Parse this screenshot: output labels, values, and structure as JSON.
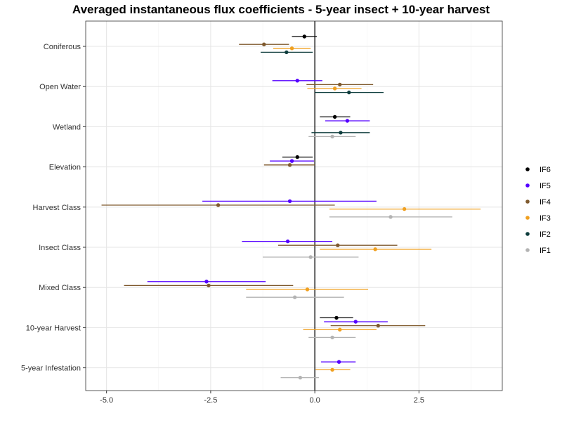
{
  "chart_data": {
    "type": "scatter",
    "title": "Averaged instantaneous flux coefficients - 5-year insect + 10-year harvest",
    "xlabel": "",
    "ylabel": "",
    "xlim": [
      -5.5,
      4.5
    ],
    "x_ticks": [
      -5.0,
      -2.5,
      0.0,
      2.5
    ],
    "x_tick_labels": [
      "-5.0",
      "-2.5",
      "0.0",
      "2.5"
    ],
    "grid": true,
    "reference_line_x": 0,
    "legend_position": "right",
    "categories": [
      "Coniferous",
      "Open Water",
      "Wetland",
      "Elevation",
      "Harvest Class",
      "Insect Class",
      "Mixed Class",
      "10-year Harvest",
      "5-year Infestation"
    ],
    "series": [
      {
        "name": "IF6",
        "color": "#000000",
        "points": [
          {
            "category": "Coniferous",
            "estimate": -0.25,
            "lower": -0.55,
            "upper": 0.05
          },
          {
            "category": "Wetland",
            "estimate": 0.48,
            "lower": 0.12,
            "upper": 0.85
          },
          {
            "category": "Elevation",
            "estimate": -0.42,
            "lower": -0.78,
            "upper": -0.05
          },
          {
            "category": "10-year Harvest",
            "estimate": 0.52,
            "lower": 0.12,
            "upper": 0.92
          }
        ]
      },
      {
        "name": "IF5",
        "color": "#5500FF",
        "points": [
          {
            "category": "Open Water",
            "estimate": -0.42,
            "lower": -1.02,
            "upper": 0.18
          },
          {
            "category": "Wetland",
            "estimate": 0.78,
            "lower": 0.25,
            "upper": 1.32
          },
          {
            "category": "Elevation",
            "estimate": -0.55,
            "lower": -1.08,
            "upper": -0.02
          },
          {
            "category": "Harvest Class",
            "estimate": -0.6,
            "lower": -2.7,
            "upper": 1.48
          },
          {
            "category": "Insect Class",
            "estimate": -0.65,
            "lower": -1.75,
            "upper": 0.42
          },
          {
            "category": "Mixed Class",
            "estimate": -2.6,
            "lower": -4.02,
            "upper": -1.18
          },
          {
            "category": "10-year Harvest",
            "estimate": 0.98,
            "lower": 0.22,
            "upper": 1.75
          },
          {
            "category": "5-year Infestation",
            "estimate": 0.58,
            "lower": 0.15,
            "upper": 0.98
          }
        ]
      },
      {
        "name": "IF4",
        "color": "#7F5A2E",
        "points": [
          {
            "category": "Coniferous",
            "estimate": -1.22,
            "lower": -1.82,
            "upper": -0.62
          },
          {
            "category": "Open Water",
            "estimate": 0.6,
            "lower": -0.2,
            "upper": 1.4
          },
          {
            "category": "Elevation",
            "estimate": -0.6,
            "lower": -1.22,
            "upper": 0.0
          },
          {
            "category": "Harvest Class",
            "estimate": -2.32,
            "lower": -5.12,
            "upper": 0.48
          },
          {
            "category": "Insect Class",
            "estimate": 0.55,
            "lower": -0.88,
            "upper": 1.98
          },
          {
            "category": "Mixed Class",
            "estimate": -2.55,
            "lower": -4.58,
            "upper": -0.52
          },
          {
            "category": "10-year Harvest",
            "estimate": 1.52,
            "lower": 0.38,
            "upper": 2.65
          }
        ]
      },
      {
        "name": "IF3",
        "color": "#F0A020",
        "points": [
          {
            "category": "Coniferous",
            "estimate": -0.55,
            "lower": -1.0,
            "upper": -0.1
          },
          {
            "category": "Open Water",
            "estimate": 0.48,
            "lower": -0.18,
            "upper": 1.12
          },
          {
            "category": "Harvest Class",
            "estimate": 2.15,
            "lower": 0.35,
            "upper": 3.98
          },
          {
            "category": "Insect Class",
            "estimate": 1.45,
            "lower": 0.12,
            "upper": 2.8
          },
          {
            "category": "Mixed Class",
            "estimate": -0.18,
            "lower": -1.65,
            "upper": 1.28
          },
          {
            "category": "10-year Harvest",
            "estimate": 0.6,
            "lower": -0.28,
            "upper": 1.48
          },
          {
            "category": "5-year Infestation",
            "estimate": 0.42,
            "lower": 0.02,
            "upper": 0.85
          }
        ]
      },
      {
        "name": "IF2",
        "color": "#0E3D3D",
        "points": [
          {
            "category": "Coniferous",
            "estimate": -0.68,
            "lower": -1.3,
            "upper": -0.05
          },
          {
            "category": "Open Water",
            "estimate": 0.82,
            "lower": 0.0,
            "upper": 1.65
          },
          {
            "category": "Wetland",
            "estimate": 0.62,
            "lower": -0.08,
            "upper": 1.32
          }
        ]
      },
      {
        "name": "IF1",
        "color": "#B3B3B3",
        "points": [
          {
            "category": "Wetland",
            "estimate": 0.42,
            "lower": -0.15,
            "upper": 0.98
          },
          {
            "category": "Harvest Class",
            "estimate": 1.82,
            "lower": 0.35,
            "upper": 3.3
          },
          {
            "category": "Insect Class",
            "estimate": -0.1,
            "lower": -1.25,
            "upper": 1.05
          },
          {
            "category": "Mixed Class",
            "estimate": -0.48,
            "lower": -1.65,
            "upper": 0.7
          },
          {
            "category": "10-year Harvest",
            "estimate": 0.42,
            "lower": -0.15,
            "upper": 0.98
          },
          {
            "category": "5-year Infestation",
            "estimate": -0.35,
            "lower": -0.82,
            "upper": 0.1
          }
        ]
      }
    ],
    "legend_order": [
      "IF6",
      "IF5",
      "IF4",
      "IF3",
      "IF2",
      "IF1"
    ]
  }
}
